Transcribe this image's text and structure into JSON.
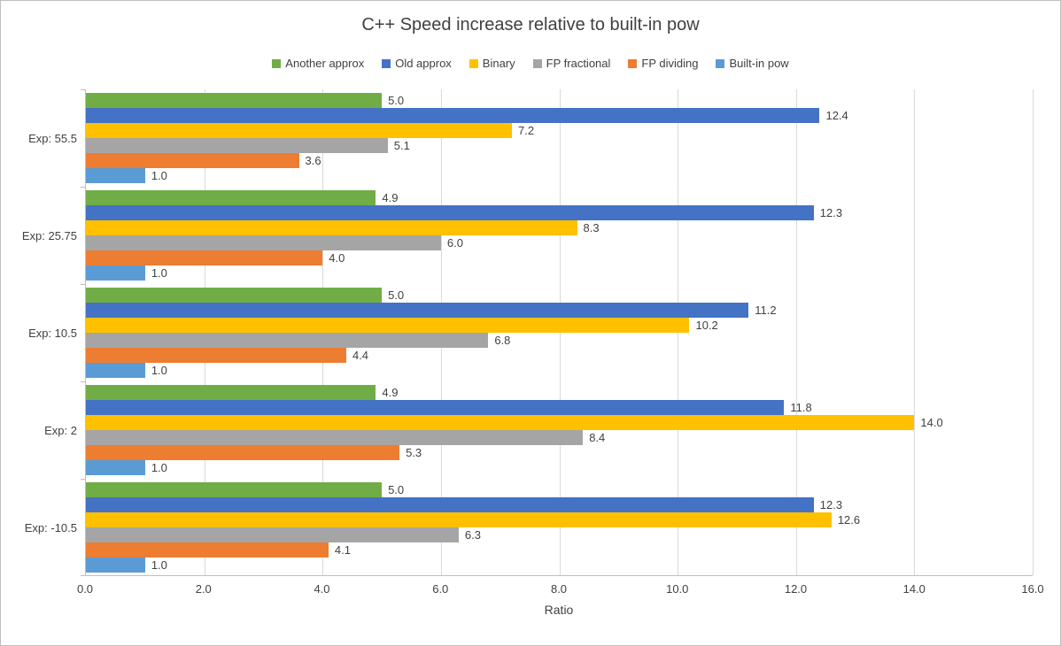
{
  "chart_data": {
    "type": "bar",
    "orientation": "horizontal",
    "title": "C++ Speed increase relative to built-in pow",
    "xlabel": "Ratio",
    "xlim": [
      0,
      16
    ],
    "xticks": [
      0.0,
      2.0,
      4.0,
      6.0,
      8.0,
      10.0,
      12.0,
      14.0,
      16.0
    ],
    "grid": true,
    "legend_position": "top",
    "categories": [
      "Exp: 55.5",
      "Exp: 25.75",
      "Exp: 10.5",
      "Exp: 2",
      "Exp: -10.5"
    ],
    "series": [
      {
        "name": "Another approx",
        "color": "#70AD47",
        "values": [
          5.0,
          4.9,
          5.0,
          4.9,
          5.0
        ]
      },
      {
        "name": "Old approx",
        "color": "#4472C4",
        "values": [
          12.4,
          12.3,
          11.2,
          11.8,
          12.3
        ]
      },
      {
        "name": "Binary",
        "color": "#FFC000",
        "values": [
          7.2,
          8.3,
          10.2,
          14.0,
          12.6
        ]
      },
      {
        "name": "FP fractional",
        "color": "#A5A5A5",
        "values": [
          5.1,
          6.0,
          6.8,
          8.4,
          6.3
        ]
      },
      {
        "name": "FP dividing",
        "color": "#ED7D31",
        "values": [
          3.6,
          4.0,
          4.4,
          5.3,
          4.1
        ]
      },
      {
        "name": "Built-in pow",
        "color": "#5B9BD5",
        "values": [
          1.0,
          1.0,
          1.0,
          1.0,
          1.0
        ]
      }
    ]
  }
}
